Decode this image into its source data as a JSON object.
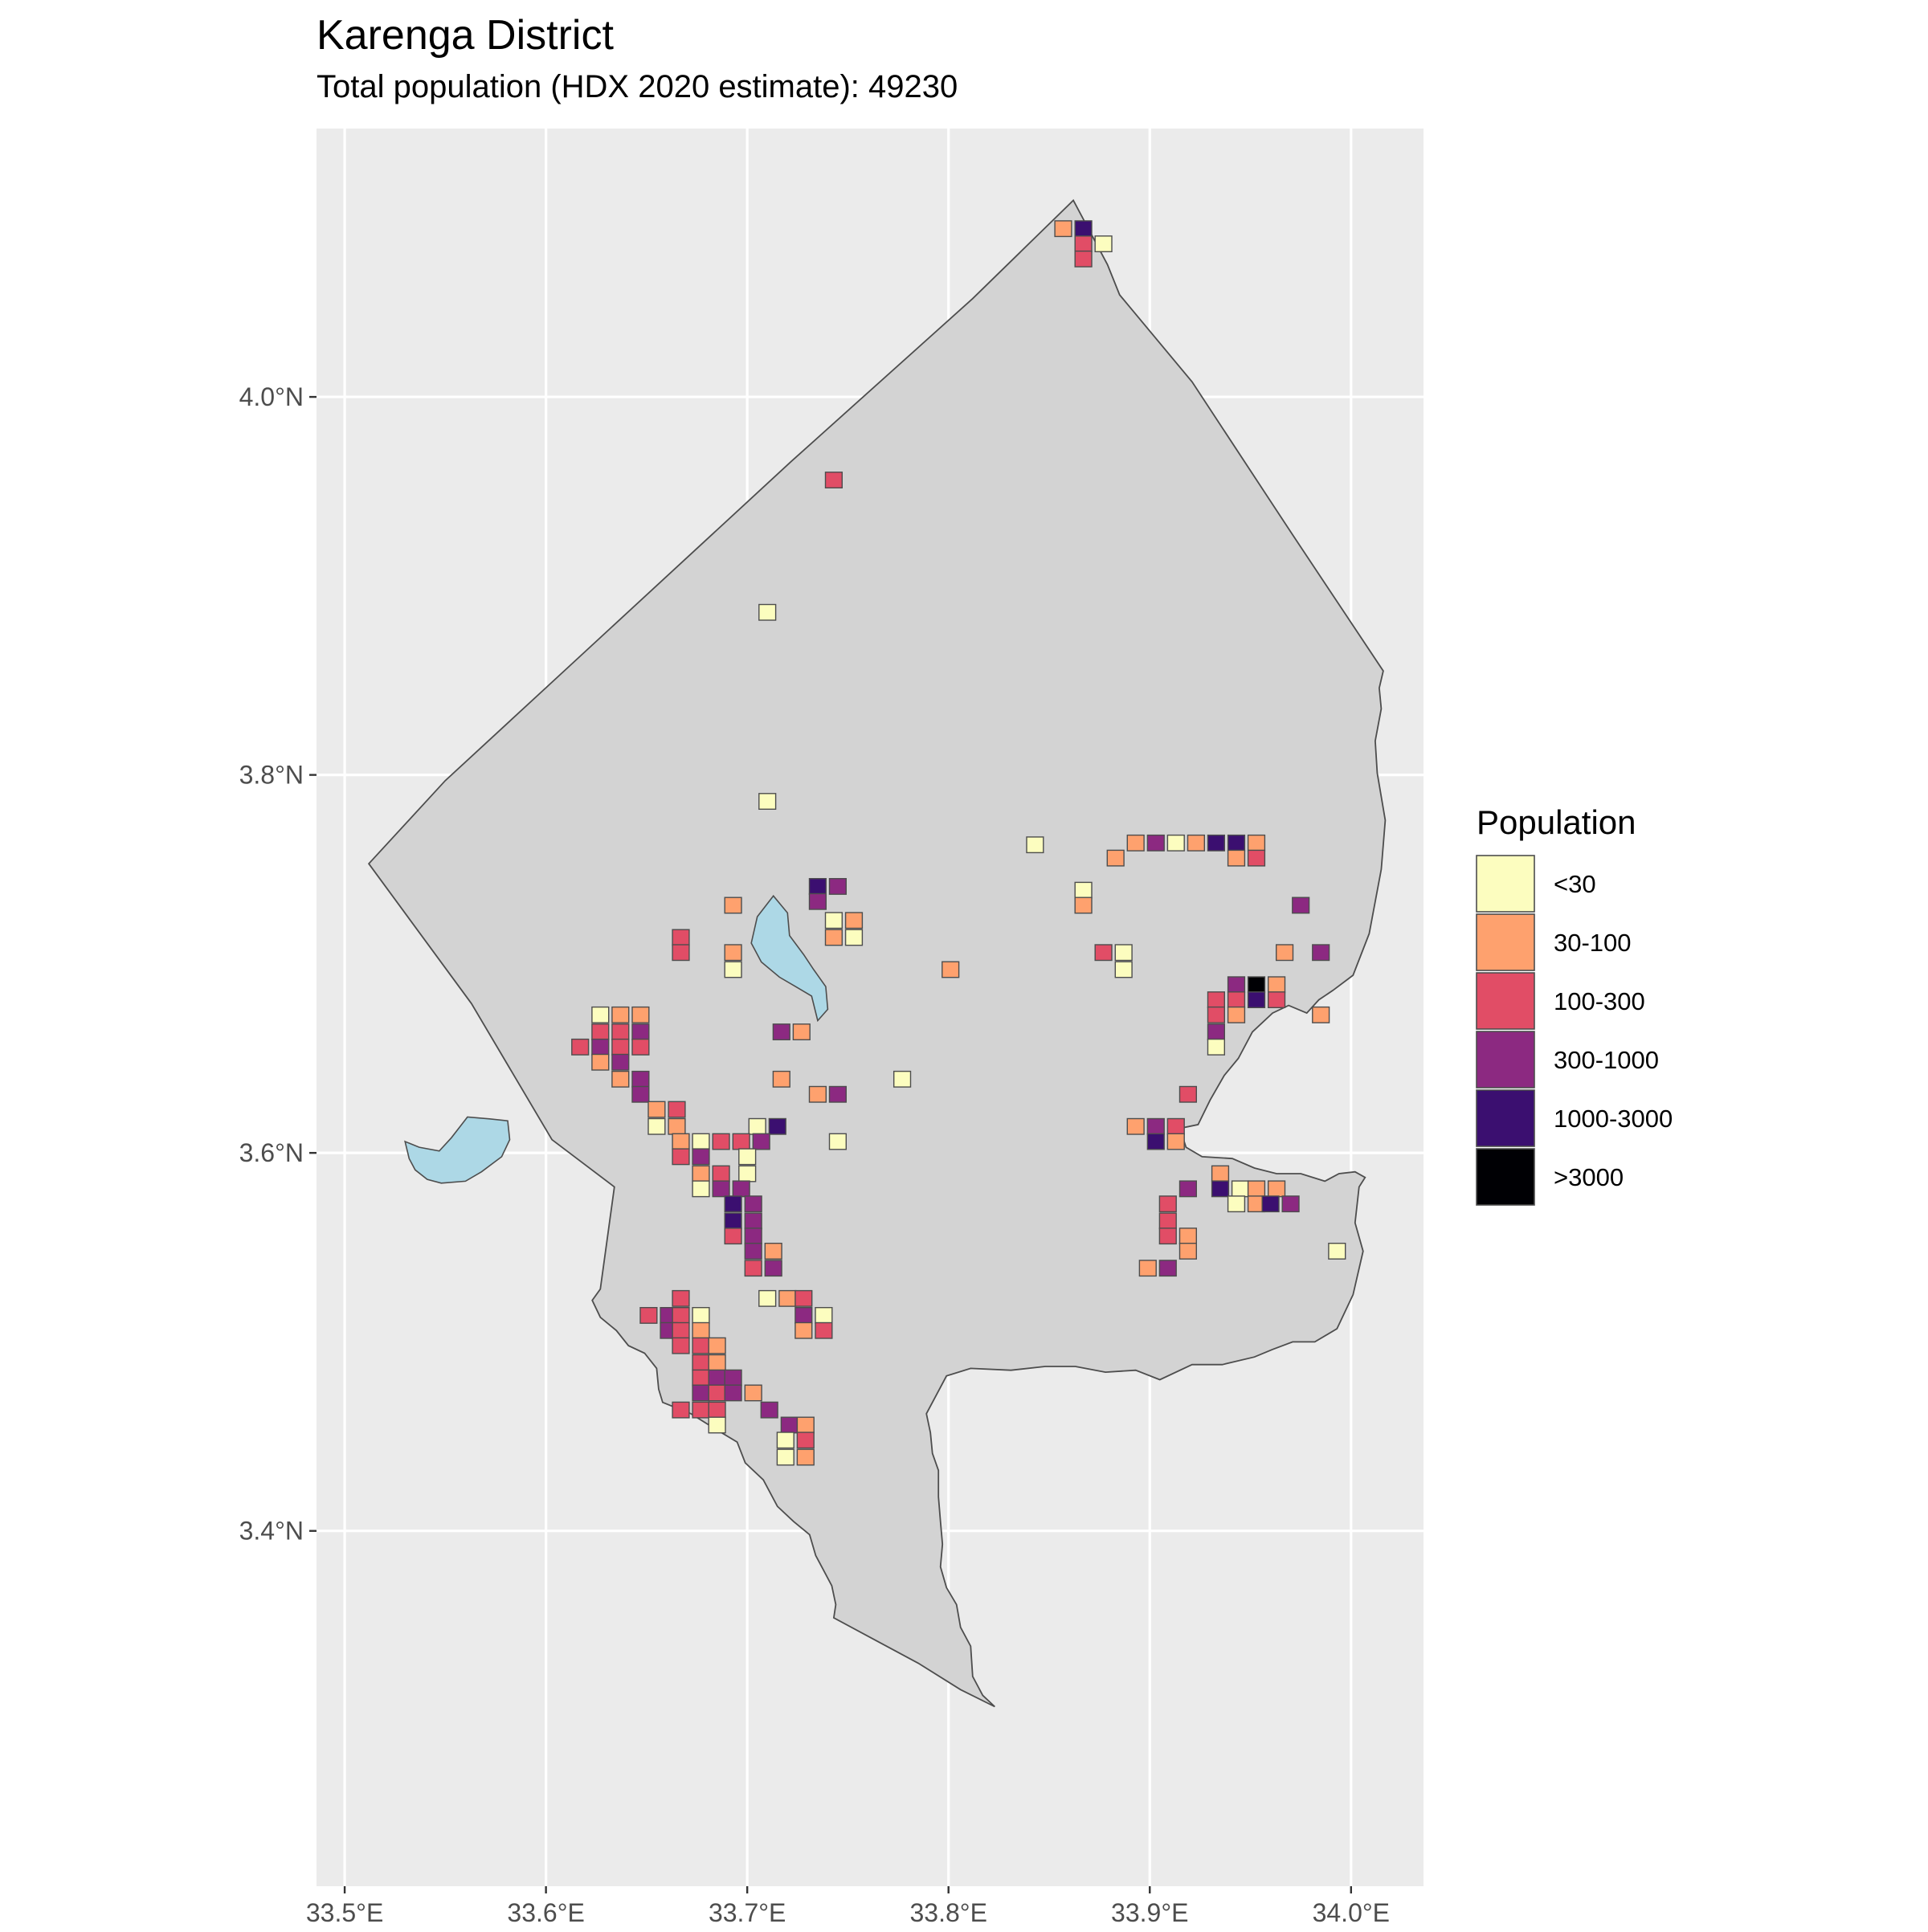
{
  "title": "Karenga District",
  "subtitle": "Total population (HDX 2020 estimate): 49230",
  "chart_data": {
    "type": "map",
    "x_ticks": [
      "33.5°E",
      "33.6°E",
      "33.7°E",
      "33.8°E",
      "33.9°E",
      "34.0°E"
    ],
    "y_ticks": [
      "4.0°N",
      "3.8°N",
      "3.6°N",
      "3.4°N"
    ],
    "x_tick_values": [
      33.5,
      33.6,
      33.7,
      33.8,
      33.9,
      34.0
    ],
    "y_tick_values": [
      4.0,
      3.8,
      3.6,
      3.4
    ],
    "xlim": [
      33.486,
      34.036
    ],
    "ylim": [
      3.212,
      4.142
    ],
    "grid": true,
    "legend": {
      "title": "Population",
      "placement": "right",
      "classes": [
        {
          "label": "<30",
          "color": "#fcfdbf"
        },
        {
          "label": "30-100",
          "color": "#fea16e"
        },
        {
          "label": "100-300",
          "color": "#e14d66"
        },
        {
          "label": "300-1000",
          "color": "#8c2981"
        },
        {
          "label": "1000-3000",
          "color": "#3b0f70"
        },
        {
          "label": ">3000",
          "color": "#000004"
        }
      ]
    },
    "colors": {
      "panel_background": "#ebebeb",
      "gridline": "#ffffff",
      "district_fill": "#d3d3d3",
      "district_outline": "#4d4d4d",
      "water": "#add8e6",
      "cell_outline": "#4d4d4d"
    },
    "district_outline": [
      [
        33.512,
        3.753
      ],
      [
        33.563,
        3.679
      ],
      [
        33.603,
        3.607
      ],
      [
        33.634,
        3.582
      ],
      [
        33.627,
        3.528
      ],
      [
        33.623,
        3.522
      ],
      [
        33.627,
        3.513
      ],
      [
        33.635,
        3.506
      ],
      [
        33.641,
        3.498
      ],
      [
        33.649,
        3.494
      ],
      [
        33.655,
        3.486
      ],
      [
        33.656,
        3.475
      ],
      [
        33.658,
        3.468
      ],
      [
        33.672,
        3.462
      ],
      [
        33.684,
        3.454
      ],
      [
        33.695,
        3.447
      ],
      [
        33.699,
        3.436
      ],
      [
        33.708,
        3.427
      ],
      [
        33.715,
        3.413
      ],
      [
        33.723,
        3.405
      ],
      [
        33.731,
        3.398
      ],
      [
        33.734,
        3.387
      ],
      [
        33.738,
        3.379
      ],
      [
        33.742,
        3.371
      ],
      [
        33.744,
        3.361
      ],
      [
        33.743,
        3.354
      ],
      [
        33.764,
        3.342
      ],
      [
        33.785,
        3.33
      ],
      [
        33.806,
        3.316
      ],
      [
        33.823,
        3.307
      ],
      [
        33.817,
        3.313
      ],
      [
        33.812,
        3.323
      ],
      [
        33.811,
        3.339
      ],
      [
        33.806,
        3.349
      ],
      [
        33.804,
        3.361
      ],
      [
        33.799,
        3.37
      ],
      [
        33.796,
        3.381
      ],
      [
        33.797,
        3.393
      ],
      [
        33.796,
        3.405
      ],
      [
        33.795,
        3.418
      ],
      [
        33.795,
        3.432
      ],
      [
        33.792,
        3.441
      ],
      [
        33.791,
        3.452
      ],
      [
        33.789,
        3.462
      ],
      [
        33.794,
        3.472
      ],
      [
        33.799,
        3.482
      ],
      [
        33.811,
        3.486
      ],
      [
        33.831,
        3.485
      ],
      [
        33.848,
        3.487
      ],
      [
        33.863,
        3.487
      ],
      [
        33.878,
        3.484
      ],
      [
        33.893,
        3.485
      ],
      [
        33.905,
        3.48
      ],
      [
        33.921,
        3.488
      ],
      [
        33.936,
        3.488
      ],
      [
        33.952,
        3.492
      ],
      [
        33.961,
        3.496
      ],
      [
        33.971,
        3.5
      ],
      [
        33.982,
        3.5
      ],
      [
        33.993,
        3.507
      ],
      [
        34.001,
        3.525
      ],
      [
        34.006,
        3.548
      ],
      [
        34.002,
        3.563
      ],
      [
        34.004,
        3.582
      ],
      [
        34.007,
        3.587
      ],
      [
        34.002,
        3.59
      ],
      [
        33.994,
        3.589
      ],
      [
        33.987,
        3.585
      ],
      [
        33.975,
        3.589
      ],
      [
        33.963,
        3.589
      ],
      [
        33.952,
        3.592
      ],
      [
        33.941,
        3.597
      ],
      [
        33.926,
        3.598
      ],
      [
        33.918,
        3.603
      ],
      [
        33.915,
        3.613
      ],
      [
        33.924,
        3.615
      ],
      [
        33.93,
        3.628
      ],
      [
        33.937,
        3.641
      ],
      [
        33.944,
        3.65
      ],
      [
        33.951,
        3.664
      ],
      [
        33.961,
        3.674
      ],
      [
        33.969,
        3.678
      ],
      [
        33.978,
        3.674
      ],
      [
        33.984,
        3.681
      ],
      [
        33.991,
        3.686
      ],
      [
        34.001,
        3.694
      ],
      [
        34.009,
        3.716
      ],
      [
        34.015,
        3.75
      ],
      [
        34.017,
        3.776
      ],
      [
        34.013,
        3.801
      ],
      [
        34.012,
        3.818
      ],
      [
        34.015,
        3.835
      ],
      [
        34.014,
        3.846
      ],
      [
        34.016,
        3.855
      ],
      [
        33.971,
        3.927
      ],
      [
        33.921,
        4.008
      ],
      [
        33.885,
        4.054
      ],
      [
        33.879,
        4.07
      ],
      [
        33.862,
        4.104
      ],
      [
        33.812,
        4.052
      ],
      [
        33.722,
        3.966
      ],
      [
        33.605,
        3.851
      ],
      [
        33.55,
        3.797
      ],
      [
        33.512,
        3.753
      ]
    ],
    "water_bodies": [
      [
        [
          33.713,
          3.736
        ],
        [
          33.705,
          3.725
        ],
        [
          33.702,
          3.711
        ],
        [
          33.707,
          3.701
        ],
        [
          33.716,
          3.693
        ],
        [
          33.724,
          3.688
        ],
        [
          33.732,
          3.683
        ],
        [
          33.735,
          3.67
        ],
        [
          33.74,
          3.676
        ],
        [
          33.739,
          3.688
        ],
        [
          33.733,
          3.697
        ],
        [
          33.728,
          3.705
        ],
        [
          33.721,
          3.715
        ],
        [
          33.72,
          3.727
        ],
        [
          33.713,
          3.736
        ]
      ],
      [
        [
          33.53,
          3.606
        ],
        [
          33.537,
          3.603
        ],
        [
          33.547,
          3.601
        ],
        [
          33.553,
          3.608
        ],
        [
          33.561,
          3.619
        ],
        [
          33.572,
          3.618
        ],
        [
          33.581,
          3.617
        ],
        [
          33.582,
          3.607
        ],
        [
          33.578,
          3.598
        ],
        [
          33.568,
          3.59
        ],
        [
          33.56,
          3.585
        ],
        [
          33.548,
          3.584
        ],
        [
          33.541,
          3.586
        ],
        [
          33.535,
          3.591
        ],
        [
          33.532,
          3.597
        ],
        [
          33.53,
          3.606
        ]
      ]
    ],
    "cells": [
      [
        33.857,
        4.089,
        1
      ],
      [
        33.867,
        4.089,
        4
      ],
      [
        33.867,
        4.081,
        2
      ],
      [
        33.877,
        4.081,
        0
      ],
      [
        33.867,
        4.073,
        2
      ],
      [
        33.743,
        3.956,
        2
      ],
      [
        33.71,
        3.886,
        0
      ],
      [
        33.71,
        3.786,
        0
      ],
      [
        33.843,
        3.763,
        0
      ],
      [
        33.883,
        3.756,
        1
      ],
      [
        33.893,
        3.764,
        1
      ],
      [
        33.903,
        3.764,
        3
      ],
      [
        33.913,
        3.764,
        0
      ],
      [
        33.923,
        3.764,
        1
      ],
      [
        33.933,
        3.764,
        4
      ],
      [
        33.943,
        3.764,
        4
      ],
      [
        33.943,
        3.756,
        1
      ],
      [
        33.953,
        3.764,
        1
      ],
      [
        33.953,
        3.756,
        2
      ],
      [
        33.867,
        3.739,
        0
      ],
      [
        33.867,
        3.731,
        1
      ],
      [
        33.975,
        3.731,
        3
      ],
      [
        33.735,
        3.741,
        4
      ],
      [
        33.745,
        3.741,
        3
      ],
      [
        33.735,
        3.733,
        3
      ],
      [
        33.693,
        3.731,
        1
      ],
      [
        33.743,
        3.723,
        0
      ],
      [
        33.753,
        3.723,
        1
      ],
      [
        33.743,
        3.714,
        1
      ],
      [
        33.753,
        3.714,
        0
      ],
      [
        33.667,
        3.714,
        2
      ],
      [
        33.667,
        3.706,
        2
      ],
      [
        33.693,
        3.706,
        1
      ],
      [
        33.693,
        3.697,
        0
      ],
      [
        33.801,
        3.697,
        1
      ],
      [
        33.877,
        3.706,
        2
      ],
      [
        33.887,
        3.706,
        0
      ],
      [
        33.887,
        3.697,
        0
      ],
      [
        33.967,
        3.706,
        1
      ],
      [
        33.985,
        3.706,
        3
      ],
      [
        33.943,
        3.689,
        3
      ],
      [
        33.953,
        3.689,
        5
      ],
      [
        33.963,
        3.689,
        1
      ],
      [
        33.933,
        3.681,
        2
      ],
      [
        33.943,
        3.681,
        2
      ],
      [
        33.953,
        3.681,
        4
      ],
      [
        33.963,
        3.681,
        2
      ],
      [
        33.933,
        3.673,
        2
      ],
      [
        33.943,
        3.673,
        1
      ],
      [
        33.985,
        3.673,
        1
      ],
      [
        33.933,
        3.664,
        3
      ],
      [
        33.933,
        3.656,
        0
      ],
      [
        33.627,
        3.673,
        0
      ],
      [
        33.637,
        3.673,
        1
      ],
      [
        33.647,
        3.673,
        1
      ],
      [
        33.627,
        3.664,
        2
      ],
      [
        33.637,
        3.664,
        2
      ],
      [
        33.647,
        3.664,
        3
      ],
      [
        33.617,
        3.656,
        2
      ],
      [
        33.627,
        3.656,
        3
      ],
      [
        33.637,
        3.656,
        2
      ],
      [
        33.647,
        3.656,
        2
      ],
      [
        33.627,
        3.648,
        1
      ],
      [
        33.637,
        3.648,
        3
      ],
      [
        33.647,
        3.639,
        3
      ],
      [
        33.637,
        3.639,
        1
      ],
      [
        33.647,
        3.631,
        3
      ],
      [
        33.717,
        3.664,
        3
      ],
      [
        33.727,
        3.664,
        1
      ],
      [
        33.717,
        3.639,
        1
      ],
      [
        33.777,
        3.639,
        0
      ],
      [
        33.735,
        3.631,
        1
      ],
      [
        33.745,
        3.631,
        3
      ],
      [
        33.919,
        3.631,
        2
      ],
      [
        33.655,
        3.623,
        1
      ],
      [
        33.665,
        3.623,
        2
      ],
      [
        33.655,
        3.614,
        0
      ],
      [
        33.665,
        3.614,
        1
      ],
      [
        33.705,
        3.614,
        0
      ],
      [
        33.715,
        3.614,
        4
      ],
      [
        33.745,
        3.606,
        0
      ],
      [
        33.893,
        3.614,
        1
      ],
      [
        33.903,
        3.614,
        3
      ],
      [
        33.913,
        3.614,
        2
      ],
      [
        33.903,
        3.606,
        4
      ],
      [
        33.913,
        3.606,
        1
      ],
      [
        33.667,
        3.606,
        1
      ],
      [
        33.677,
        3.606,
        0
      ],
      [
        33.687,
        3.606,
        2
      ],
      [
        33.697,
        3.606,
        2
      ],
      [
        33.707,
        3.606,
        3
      ],
      [
        33.667,
        3.598,
        2
      ],
      [
        33.677,
        3.598,
        3
      ],
      [
        33.7,
        3.598,
        0
      ],
      [
        33.677,
        3.589,
        1
      ],
      [
        33.687,
        3.589,
        2
      ],
      [
        33.7,
        3.589,
        0
      ],
      [
        33.677,
        3.581,
        0
      ],
      [
        33.687,
        3.581,
        3
      ],
      [
        33.697,
        3.581,
        3
      ],
      [
        33.693,
        3.573,
        4
      ],
      [
        33.703,
        3.573,
        3
      ],
      [
        33.693,
        3.564,
        4
      ],
      [
        33.703,
        3.564,
        3
      ],
      [
        33.693,
        3.556,
        2
      ],
      [
        33.703,
        3.556,
        3
      ],
      [
        33.703,
        3.548,
        3
      ],
      [
        33.713,
        3.548,
        1
      ],
      [
        33.703,
        3.539,
        2
      ],
      [
        33.713,
        3.539,
        3
      ],
      [
        33.935,
        3.589,
        1
      ],
      [
        33.919,
        3.581,
        3
      ],
      [
        33.935,
        3.581,
        4
      ],
      [
        33.945,
        3.581,
        0
      ],
      [
        33.953,
        3.581,
        1
      ],
      [
        33.963,
        3.581,
        1
      ],
      [
        33.909,
        3.573,
        2
      ],
      [
        33.943,
        3.573,
        0
      ],
      [
        33.953,
        3.573,
        1
      ],
      [
        33.96,
        3.573,
        4
      ],
      [
        33.97,
        3.573,
        3
      ],
      [
        33.909,
        3.564,
        2
      ],
      [
        33.909,
        3.556,
        2
      ],
      [
        33.919,
        3.556,
        1
      ],
      [
        33.919,
        3.548,
        1
      ],
      [
        33.899,
        3.539,
        1
      ],
      [
        33.909,
        3.539,
        3
      ],
      [
        33.993,
        3.548,
        0
      ],
      [
        33.71,
        3.523,
        0
      ],
      [
        33.72,
        3.523,
        1
      ],
      [
        33.728,
        3.523,
        2
      ],
      [
        33.728,
        3.514,
        3
      ],
      [
        33.738,
        3.514,
        0
      ],
      [
        33.728,
        3.506,
        1
      ],
      [
        33.738,
        3.506,
        2
      ],
      [
        33.667,
        3.523,
        2
      ],
      [
        33.677,
        3.514,
        0
      ],
      [
        33.651,
        3.514,
        2
      ],
      [
        33.661,
        3.514,
        3
      ],
      [
        33.667,
        3.514,
        2
      ],
      [
        33.661,
        3.506,
        3
      ],
      [
        33.667,
        3.506,
        2
      ],
      [
        33.677,
        3.506,
        1
      ],
      [
        33.667,
        3.498,
        2
      ],
      [
        33.677,
        3.498,
        2
      ],
      [
        33.685,
        3.498,
        1
      ],
      [
        33.677,
        3.489,
        2
      ],
      [
        33.685,
        3.489,
        1
      ],
      [
        33.677,
        3.481,
        2
      ],
      [
        33.685,
        3.481,
        3
      ],
      [
        33.693,
        3.481,
        3
      ],
      [
        33.677,
        3.473,
        3
      ],
      [
        33.685,
        3.473,
        2
      ],
      [
        33.693,
        3.473,
        3
      ],
      [
        33.703,
        3.473,
        1
      ],
      [
        33.667,
        3.464,
        2
      ],
      [
        33.677,
        3.464,
        2
      ],
      [
        33.685,
        3.464,
        2
      ],
      [
        33.685,
        3.456,
        0
      ],
      [
        33.711,
        3.464,
        3
      ],
      [
        33.721,
        3.456,
        3
      ],
      [
        33.729,
        3.456,
        1
      ],
      [
        33.719,
        3.448,
        0
      ],
      [
        33.729,
        3.448,
        2
      ],
      [
        33.719,
        3.439,
        0
      ],
      [
        33.729,
        3.439,
        1
      ]
    ]
  }
}
